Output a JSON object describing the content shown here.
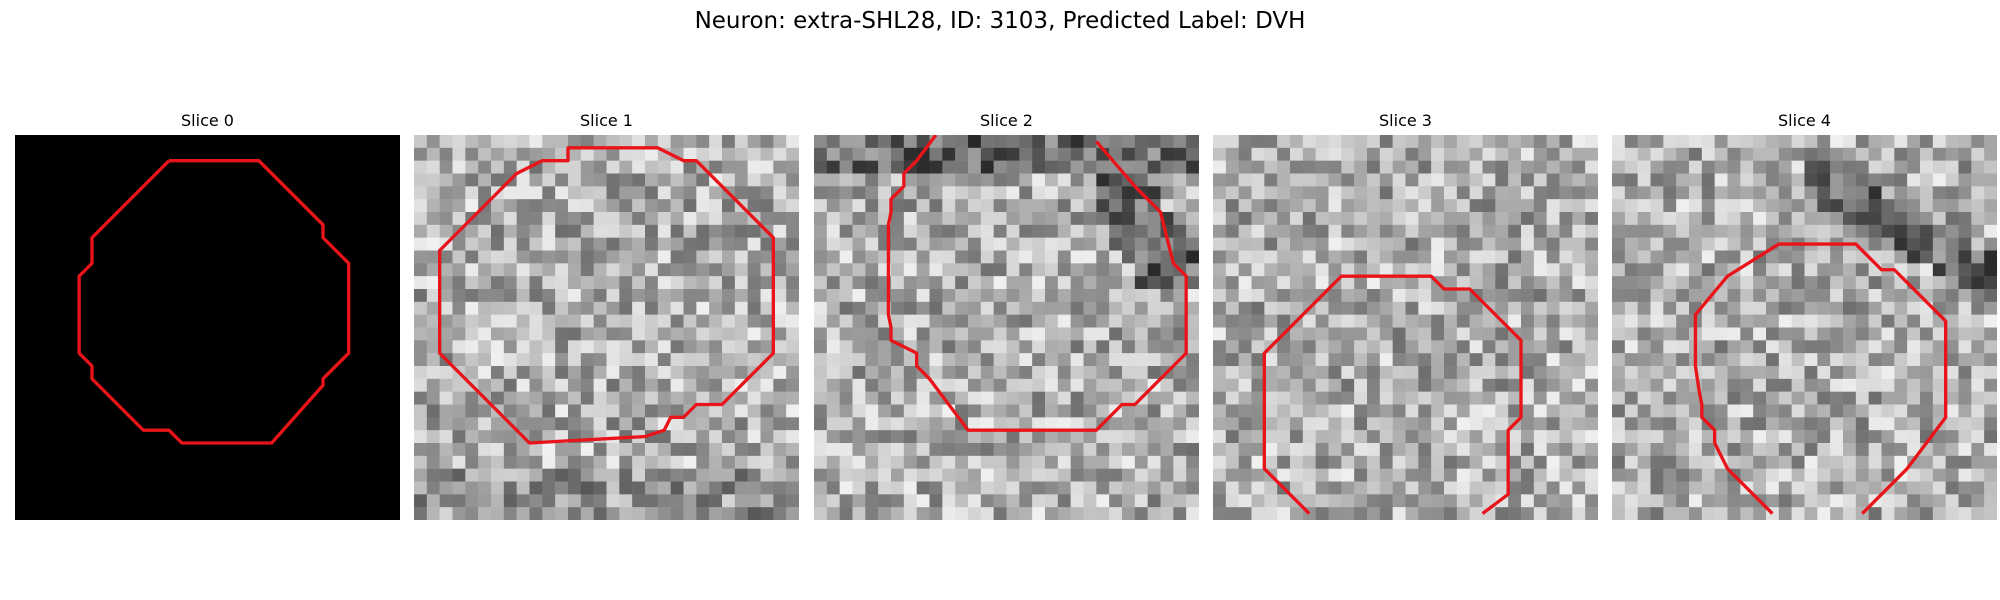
{
  "figure": {
    "title": "Neuron: extra-SHL28, ID: 3103, Predicted Label: DVH",
    "panels": [
      {
        "title": "Slice 0",
        "type": "mask"
      },
      {
        "title": "Slice 1",
        "type": "grayscale"
      },
      {
        "title": "Slice 2",
        "type": "grayscale"
      },
      {
        "title": "Slice 3",
        "type": "grayscale"
      },
      {
        "title": "Slice 4",
        "type": "grayscale"
      }
    ],
    "contour_color": "#e8141a",
    "mask_background": "#000000"
  }
}
